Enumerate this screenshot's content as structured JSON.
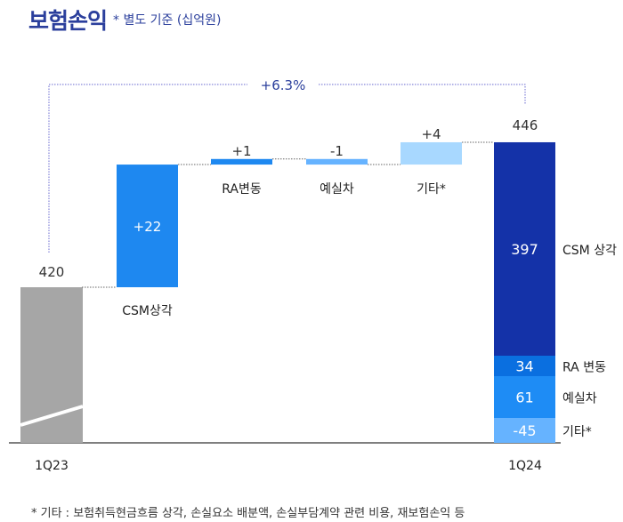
{
  "title": "보험손익",
  "subtitle": "* 별도 기준 (십억원)",
  "footnote": "* 기타 : 보험취득현금흐름 상각, 손실요소 배분액, 손실부담계약 관련 비용, 재보험손익 등",
  "chart_data": {
    "type": "waterfall",
    "growth_label": "+6.3%",
    "start": {
      "label": "1Q23",
      "value": 420,
      "color": "#a6a6a6"
    },
    "steps": [
      {
        "label": "CSM상각",
        "value": 22,
        "value_label": "+22",
        "color": "#1e88f0"
      },
      {
        "label": "RA변동",
        "value": 1,
        "value_label": "+1",
        "color": "#1e88f0"
      },
      {
        "label": "예실차",
        "value": -1,
        "value_label": "-1",
        "color": "#66b3ff"
      },
      {
        "label": "기타*",
        "value": 4,
        "value_label": "+4",
        "color": "#a8d8ff"
      }
    ],
    "end": {
      "label": "1Q24",
      "value": 446,
      "components": [
        {
          "label": "CSM 상각",
          "value": 397,
          "value_label": "397",
          "color": "#1432a8"
        },
        {
          "label": "RA 변동",
          "value": 34,
          "value_label": "34",
          "color": "#0a6fe0"
        },
        {
          "label": "예실차",
          "value": 61,
          "value_label": "61",
          "color": "#1e8cf5"
        },
        {
          "label": "기타*",
          "value": -45,
          "value_label": "-45",
          "color": "#66b3ff"
        }
      ]
    }
  }
}
